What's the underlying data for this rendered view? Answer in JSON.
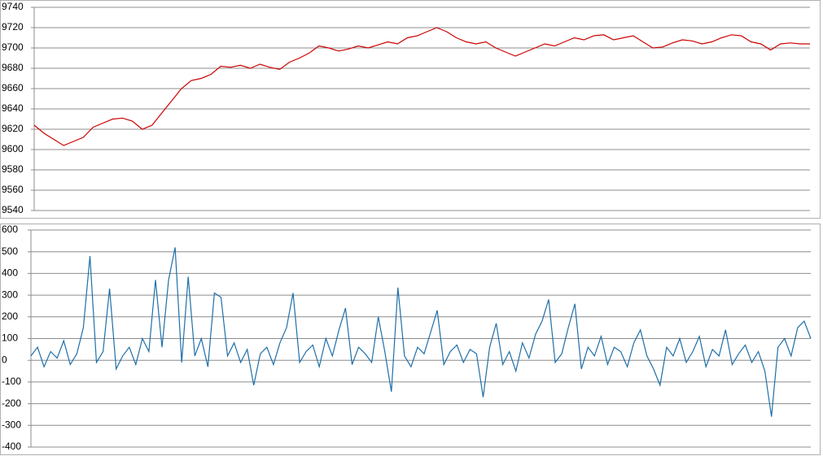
{
  "chart_data": [
    {
      "type": "line",
      "color": "#cc0000",
      "grid": true,
      "ylim": [
        9540,
        9740
      ],
      "yticks": [
        9540,
        9560,
        9580,
        9600,
        9620,
        9640,
        9660,
        9680,
        9700,
        9720,
        9740
      ],
      "values": [
        9624,
        9616,
        9610,
        9604,
        9608,
        9612,
        9622,
        9626,
        9630,
        9631,
        9628,
        9620,
        9624,
        9636,
        9648,
        9660,
        9668,
        9670,
        9674,
        9682,
        9681,
        9683,
        9680,
        9684,
        9681,
        9679,
        9686,
        9690,
        9695,
        9702,
        9700,
        9697,
        9699,
        9702,
        9700,
        9703,
        9706,
        9704,
        9710,
        9712,
        9716,
        9720,
        9716,
        9710,
        9706,
        9704,
        9706,
        9700,
        9696,
        9692,
        9696,
        9700,
        9704,
        9702,
        9706,
        9710,
        9708,
        9712,
        9713,
        9708,
        9710,
        9712,
        9706,
        9700,
        9701,
        9705,
        9708,
        9707,
        9704,
        9706,
        9710,
        9713,
        9712,
        9706,
        9704,
        9698,
        9704,
        9705,
        9704,
        9704
      ]
    },
    {
      "type": "line",
      "color": "#1f6fa8",
      "grid": true,
      "ylim": [
        -400,
        600
      ],
      "yticks": [
        -400,
        -300,
        -200,
        -100,
        0,
        100,
        200,
        300,
        400,
        500,
        600
      ],
      "values": [
        20,
        60,
        -30,
        40,
        10,
        90,
        -20,
        30,
        150,
        480,
        -10,
        40,
        330,
        -40,
        20,
        60,
        -20,
        100,
        40,
        370,
        60,
        370,
        520,
        -10,
        385,
        20,
        100,
        -30,
        310,
        290,
        20,
        80,
        -10,
        50,
        -115,
        30,
        60,
        -20,
        80,
        150,
        310,
        -10,
        40,
        70,
        -30,
        100,
        20,
        140,
        240,
        -20,
        60,
        30,
        -10,
        200,
        40,
        -145,
        335,
        20,
        -30,
        60,
        30,
        130,
        230,
        -20,
        40,
        70,
        -10,
        50,
        30,
        -170,
        60,
        170,
        -20,
        40,
        -50,
        80,
        10,
        120,
        180,
        280,
        -10,
        30,
        150,
        260,
        -40,
        60,
        20,
        110,
        -20,
        60,
        40,
        -30,
        80,
        140,
        20,
        -40,
        -115,
        60,
        20,
        100,
        -10,
        40,
        110,
        -30,
        50,
        20,
        140,
        -20,
        30,
        70,
        -10,
        40,
        -50,
        -260,
        60,
        100,
        20,
        150,
        180,
        100
      ]
    }
  ]
}
